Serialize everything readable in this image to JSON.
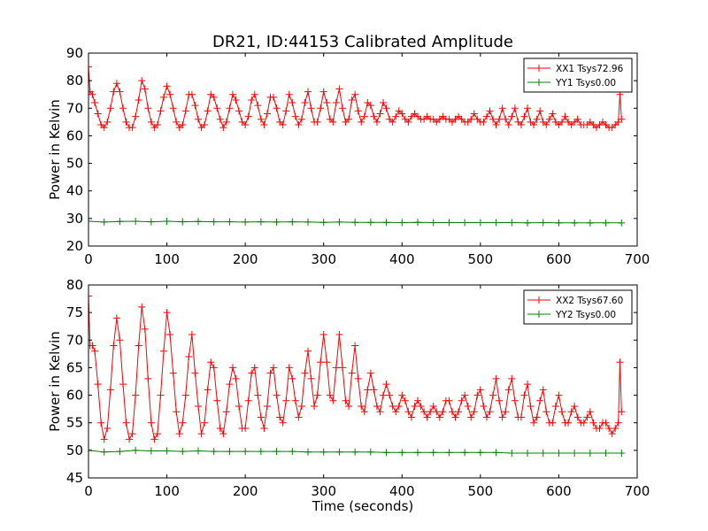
{
  "figure": {
    "title": "DR21, ID:44153 Calibrated Amplitude"
  },
  "chart_data": [
    {
      "type": "line",
      "ylabel": "Power in Kelvin",
      "xlabel": "",
      "xlim": [
        0,
        700
      ],
      "ylim": [
        20,
        90
      ],
      "xticks": [
        "0",
        "100",
        "200",
        "300",
        "400",
        "500",
        "600",
        "700"
      ],
      "yticks": [
        "20",
        "30",
        "40",
        "50",
        "60",
        "70",
        "80",
        "90"
      ],
      "legend_position": "top-right",
      "grid": false,
      "marker": "+",
      "series": [
        {
          "name": "XX1 Tsys72.96",
          "color": "#ff0000",
          "x": [
            0,
            2,
            5,
            8,
            12,
            16,
            20,
            24,
            28,
            32,
            36,
            40,
            44,
            48,
            52,
            56,
            60,
            64,
            68,
            72,
            76,
            80,
            84,
            88,
            92,
            96,
            100,
            104,
            108,
            112,
            116,
            120,
            124,
            128,
            132,
            136,
            140,
            144,
            148,
            152,
            156,
            160,
            164,
            168,
            172,
            176,
            180,
            184,
            188,
            192,
            196,
            200,
            204,
            208,
            212,
            216,
            220,
            224,
            228,
            232,
            236,
            240,
            244,
            248,
            252,
            256,
            260,
            264,
            268,
            272,
            276,
            280,
            284,
            288,
            292,
            296,
            300,
            304,
            308,
            312,
            316,
            320,
            324,
            328,
            332,
            336,
            340,
            344,
            348,
            352,
            356,
            360,
            364,
            368,
            372,
            376,
            380,
            384,
            388,
            392,
            396,
            400,
            404,
            408,
            412,
            416,
            420,
            424,
            428,
            432,
            436,
            440,
            444,
            448,
            452,
            456,
            460,
            464,
            468,
            472,
            476,
            480,
            484,
            488,
            492,
            496,
            500,
            504,
            508,
            512,
            516,
            520,
            524,
            528,
            532,
            536,
            540,
            544,
            548,
            552,
            556,
            560,
            564,
            568,
            572,
            576,
            580,
            584,
            588,
            592,
            596,
            600,
            604,
            608,
            612,
            616,
            620,
            624,
            628,
            632,
            636,
            640,
            644,
            648,
            652,
            656,
            660,
            664,
            668,
            672,
            676,
            678,
            680
          ],
          "y": [
            85,
            76,
            75,
            72,
            68,
            64,
            63,
            65,
            70,
            76,
            79,
            76,
            70,
            65,
            63,
            63,
            67,
            73,
            80,
            77,
            70,
            65,
            63,
            64,
            69,
            74,
            78,
            75,
            70,
            65,
            63,
            64,
            69,
            75,
            75,
            71,
            66,
            63,
            64,
            69,
            75,
            74,
            70,
            66,
            63,
            65,
            70,
            75,
            73,
            69,
            65,
            64,
            67,
            73,
            75,
            71,
            66,
            64,
            68,
            74,
            74,
            70,
            65,
            64,
            69,
            75,
            72,
            67,
            64,
            66,
            72,
            76,
            70,
            65,
            65,
            70,
            76,
            72,
            66,
            65,
            72,
            77,
            70,
            65,
            66,
            73,
            75,
            69,
            65,
            67,
            72,
            71,
            67,
            65,
            68,
            72,
            70,
            66,
            65,
            67,
            69,
            68,
            66,
            65,
            67,
            68,
            67,
            66,
            66,
            67,
            66,
            66,
            65,
            66,
            67,
            66,
            66,
            65,
            66,
            67,
            66,
            65,
            65,
            66,
            68,
            66,
            65,
            65,
            67,
            69,
            66,
            64,
            66,
            70,
            66,
            64,
            67,
            70,
            65,
            64,
            67,
            70,
            65,
            64,
            66,
            69,
            65,
            64,
            66,
            68,
            65,
            64,
            65,
            67,
            65,
            64,
            65,
            66,
            64,
            64,
            64,
            65,
            64,
            63,
            64,
            65,
            64,
            63,
            63,
            64,
            65,
            75,
            66
          ]
        },
        {
          "name": "YY1 Tsys0.00",
          "color": "#008000",
          "x": [
            0,
            20,
            40,
            60,
            80,
            100,
            120,
            140,
            160,
            180,
            200,
            220,
            240,
            260,
            280,
            300,
            320,
            340,
            360,
            380,
            400,
            420,
            440,
            460,
            480,
            500,
            520,
            540,
            560,
            580,
            600,
            620,
            640,
            660,
            680
          ],
          "y": [
            29,
            28.7,
            28.9,
            29,
            28.8,
            29,
            28.8,
            28.9,
            28.8,
            28.8,
            28.7,
            28.8,
            28.7,
            28.8,
            28.7,
            28.6,
            28.7,
            28.6,
            28.6,
            28.6,
            28.5,
            28.6,
            28.5,
            28.5,
            28.5,
            28.5,
            28.5,
            28.5,
            28.4,
            28.5,
            28.4,
            28.4,
            28.4,
            28.4,
            28.4
          ]
        }
      ]
    },
    {
      "type": "line",
      "ylabel": "Power in Kelvin",
      "xlabel": "Time (seconds)",
      "xlim": [
        0,
        700
      ],
      "ylim": [
        45,
        80
      ],
      "xticks": [
        "0",
        "100",
        "200",
        "300",
        "400",
        "500",
        "600",
        "700"
      ],
      "yticks": [
        "45",
        "50",
        "55",
        "60",
        "65",
        "70",
        "75",
        "80"
      ],
      "legend_position": "top-right",
      "grid": false,
      "marker": "+",
      "series": [
        {
          "name": "XX2 Tsys67.60",
          "color": "#ff0000",
          "x": [
            0,
            2,
            5,
            8,
            12,
            16,
            20,
            24,
            28,
            32,
            36,
            40,
            44,
            48,
            52,
            56,
            60,
            64,
            68,
            72,
            76,
            80,
            84,
            88,
            92,
            96,
            100,
            104,
            108,
            112,
            116,
            120,
            124,
            128,
            132,
            136,
            140,
            144,
            148,
            152,
            156,
            160,
            164,
            168,
            172,
            176,
            180,
            184,
            188,
            192,
            196,
            200,
            204,
            208,
            212,
            216,
            220,
            224,
            228,
            232,
            236,
            240,
            244,
            248,
            252,
            256,
            260,
            264,
            268,
            272,
            276,
            280,
            284,
            288,
            292,
            296,
            300,
            304,
            308,
            312,
            316,
            320,
            324,
            328,
            332,
            336,
            340,
            344,
            348,
            352,
            356,
            360,
            364,
            368,
            372,
            376,
            380,
            384,
            388,
            392,
            396,
            400,
            404,
            408,
            412,
            416,
            420,
            424,
            428,
            432,
            436,
            440,
            444,
            448,
            452,
            456,
            460,
            464,
            468,
            472,
            476,
            480,
            484,
            488,
            492,
            496,
            500,
            504,
            508,
            512,
            516,
            520,
            524,
            528,
            532,
            536,
            540,
            544,
            548,
            552,
            556,
            560,
            564,
            568,
            572,
            576,
            580,
            584,
            588,
            592,
            596,
            600,
            604,
            608,
            612,
            616,
            620,
            624,
            628,
            632,
            636,
            640,
            644,
            648,
            652,
            656,
            660,
            664,
            668,
            672,
            676,
            678,
            680
          ],
          "y": [
            78,
            69,
            69,
            68,
            62,
            55,
            52,
            54,
            61,
            69,
            74,
            70,
            62,
            55,
            52,
            53,
            60,
            69,
            76,
            72,
            63,
            55,
            52,
            53,
            60,
            68,
            75,
            71,
            64,
            57,
            53,
            55,
            60,
            67,
            71,
            64,
            58,
            53,
            55,
            61,
            66,
            65,
            59,
            54,
            53,
            57,
            62,
            65,
            63,
            58,
            54,
            54,
            59,
            64,
            65,
            60,
            56,
            54,
            58,
            64,
            65,
            60,
            56,
            55,
            59,
            65,
            63,
            59,
            56,
            58,
            64,
            68,
            63,
            58,
            60,
            66,
            71,
            66,
            60,
            59,
            65,
            71,
            65,
            59,
            58,
            64,
            69,
            63,
            58,
            57,
            61,
            64,
            61,
            58,
            57,
            60,
            62,
            60,
            58,
            57,
            58,
            60,
            59,
            57,
            56,
            58,
            59,
            58,
            57,
            56,
            57,
            58,
            57,
            56,
            57,
            59,
            59,
            57,
            56,
            57,
            59,
            60,
            58,
            56,
            57,
            60,
            61,
            58,
            56,
            57,
            60,
            63,
            59,
            56,
            57,
            61,
            63,
            59,
            56,
            56,
            60,
            62,
            58,
            55,
            56,
            59,
            61,
            57,
            55,
            55,
            58,
            60,
            57,
            55,
            55,
            57,
            58,
            56,
            55,
            55,
            56,
            57,
            55,
            54,
            54,
            55,
            55,
            54,
            53,
            54,
            55,
            66,
            57
          ]
        },
        {
          "name": "YY2 Tsys0.00",
          "color": "#008000",
          "x": [
            0,
            20,
            40,
            60,
            80,
            100,
            120,
            140,
            160,
            180,
            200,
            220,
            240,
            260,
            280,
            300,
            320,
            340,
            360,
            380,
            400,
            420,
            440,
            460,
            480,
            500,
            520,
            540,
            560,
            580,
            600,
            620,
            640,
            660,
            680
          ],
          "y": [
            50,
            49.7,
            49.8,
            50,
            49.9,
            49.9,
            49.8,
            49.9,
            49.8,
            49.8,
            49.8,
            49.8,
            49.8,
            49.8,
            49.7,
            49.7,
            49.7,
            49.7,
            49.7,
            49.6,
            49.6,
            49.6,
            49.6,
            49.6,
            49.6,
            49.6,
            49.6,
            49.5,
            49.5,
            49.5,
            49.5,
            49.5,
            49.5,
            49.5,
            49.5
          ]
        }
      ]
    }
  ]
}
